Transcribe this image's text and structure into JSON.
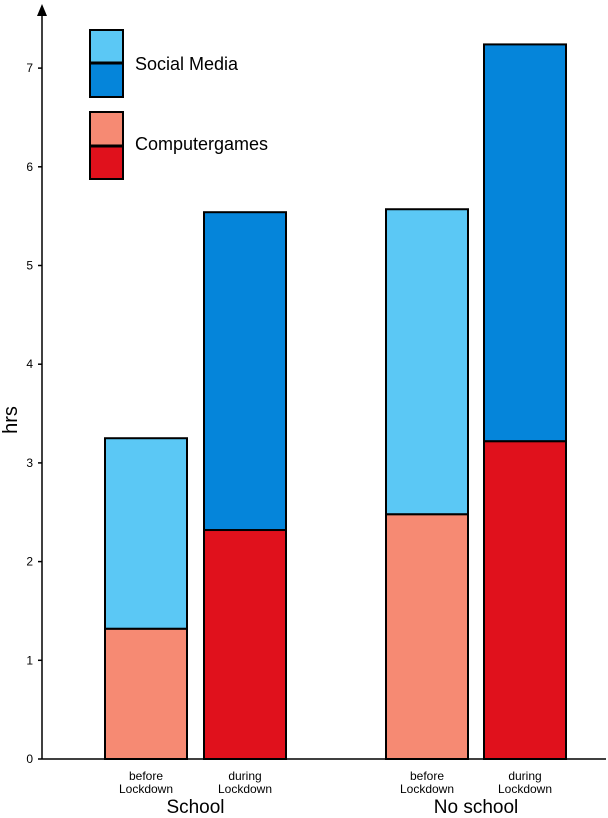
{
  "chart_data": {
    "type": "bar",
    "stacked": true,
    "ylabel": "hrs",
    "ylim": [
      0,
      7.5
    ],
    "yticks": [
      0,
      1,
      2,
      3,
      4,
      5,
      6,
      7
    ],
    "groups": [
      {
        "label": "School",
        "bars": [
          {
            "label_lines": [
              "before",
              "Lockdown"
            ],
            "period": "before",
            "computergames": 1.32,
            "social_media": 1.93
          },
          {
            "label_lines": [
              "during",
              "Lockdown"
            ],
            "period": "during",
            "computergames": 2.32,
            "social_media": 3.22
          }
        ]
      },
      {
        "label": "No school",
        "bars": [
          {
            "label_lines": [
              "before",
              "Lockdown"
            ],
            "period": "before",
            "computergames": 2.48,
            "social_media": 3.09
          },
          {
            "label_lines": [
              "during",
              "Lockdown"
            ],
            "period": "during",
            "computergames": 3.22,
            "social_media": 4.02
          }
        ]
      }
    ],
    "legend": [
      {
        "name": "Social Media",
        "color_before": "#5bc8f5",
        "color_during": "#0585da"
      },
      {
        "name": "Computergames",
        "color_before": "#f68a73",
        "color_during": "#e0111c"
      }
    ],
    "colors": {
      "social_before": "#5bc8f5",
      "social_during": "#0585da",
      "games_before": "#f68a73",
      "games_during": "#e0111c"
    },
    "legend_placement": "top-left",
    "grid": false
  }
}
